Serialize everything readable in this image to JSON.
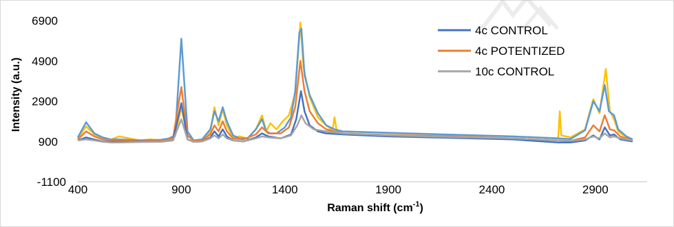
{
  "chart_data": {
    "type": "line",
    "title": "",
    "xlabel": "Raman shift (cm",
    "xlabel_sup": "-1",
    "xlabel_close": ")",
    "ylabel": "Intensity (a.u.)",
    "xlim": [
      400,
      3150
    ],
    "ylim": [
      -1100,
      6900
    ],
    "xticks": [
      400,
      900,
      1400,
      1900,
      2400,
      2900
    ],
    "yticks": [
      -1100,
      900,
      2900,
      4900,
      6900
    ],
    "grid": false,
    "legend_position": "top-right",
    "legend": [
      "4c CONTROL",
      "4c POTENTIZED",
      "10c CONTROL"
    ],
    "series": [
      {
        "name": "",
        "color": "#ffc000",
        "points": [
          [
            400,
            1050
          ],
          [
            440,
            1650
          ],
          [
            480,
            1250
          ],
          [
            520,
            1050
          ],
          [
            560,
            1000
          ],
          [
            600,
            1150
          ],
          [
            650,
            1050
          ],
          [
            700,
            950
          ],
          [
            750,
            1000
          ],
          [
            800,
            950
          ],
          [
            840,
            1000
          ],
          [
            870,
            1150
          ],
          [
            900,
            2600
          ],
          [
            930,
            1200
          ],
          [
            960,
            950
          ],
          [
            1000,
            1000
          ],
          [
            1040,
            1350
          ],
          [
            1060,
            2600
          ],
          [
            1080,
            1700
          ],
          [
            1100,
            2500
          ],
          [
            1120,
            1700
          ],
          [
            1150,
            1100
          ],
          [
            1180,
            1150
          ],
          [
            1220,
            1050
          ],
          [
            1260,
            1500
          ],
          [
            1290,
            2200
          ],
          [
            1310,
            1400
          ],
          [
            1330,
            1800
          ],
          [
            1360,
            1500
          ],
          [
            1390,
            1900
          ],
          [
            1420,
            2200
          ],
          [
            1450,
            3300
          ],
          [
            1475,
            6800
          ],
          [
            1490,
            4600
          ],
          [
            1520,
            3100
          ],
          [
            1560,
            2100
          ],
          [
            1600,
            1700
          ],
          [
            1630,
            1450
          ],
          [
            1640,
            2100
          ],
          [
            1650,
            1450
          ],
          [
            1680,
            1400
          ],
          [
            1900,
            1320
          ],
          [
            2200,
            1230
          ],
          [
            2500,
            1150
          ],
          [
            2720,
            1050
          ],
          [
            2728,
            2400
          ],
          [
            2735,
            1200
          ],
          [
            2780,
            1100
          ],
          [
            2850,
            1500
          ],
          [
            2890,
            3000
          ],
          [
            2920,
            2300
          ],
          [
            2950,
            4500
          ],
          [
            2970,
            2400
          ],
          [
            2990,
            2000
          ],
          [
            3010,
            1400
          ],
          [
            3050,
            1100
          ],
          [
            3080,
            900
          ]
        ]
      },
      {
        "name": "",
        "color": "#5b9bd5",
        "points": [
          [
            400,
            1100
          ],
          [
            440,
            1850
          ],
          [
            480,
            1300
          ],
          [
            520,
            1100
          ],
          [
            560,
            1000
          ],
          [
            600,
            1000
          ],
          [
            650,
            980
          ],
          [
            700,
            960
          ],
          [
            750,
            970
          ],
          [
            800,
            980
          ],
          [
            840,
            1050
          ],
          [
            870,
            1200
          ],
          [
            900,
            6000
          ],
          [
            930,
            1400
          ],
          [
            960,
            950
          ],
          [
            1000,
            1000
          ],
          [
            1040,
            1500
          ],
          [
            1060,
            2400
          ],
          [
            1080,
            1900
          ],
          [
            1100,
            2600
          ],
          [
            1120,
            1900
          ],
          [
            1150,
            1200
          ],
          [
            1180,
            1050
          ],
          [
            1220,
            1050
          ],
          [
            1260,
            1500
          ],
          [
            1290,
            2000
          ],
          [
            1310,
            1400
          ],
          [
            1330,
            1300
          ],
          [
            1360,
            1300
          ],
          [
            1400,
            1600
          ],
          [
            1430,
            2100
          ],
          [
            1450,
            3400
          ],
          [
            1470,
            6300
          ],
          [
            1480,
            6500
          ],
          [
            1495,
            4200
          ],
          [
            1520,
            3200
          ],
          [
            1560,
            2300
          ],
          [
            1600,
            1700
          ],
          [
            1640,
            1500
          ],
          [
            1680,
            1400
          ],
          [
            1900,
            1330
          ],
          [
            2200,
            1240
          ],
          [
            2500,
            1150
          ],
          [
            2720,
            1050
          ],
          [
            2780,
            1020
          ],
          [
            2850,
            1450
          ],
          [
            2890,
            2900
          ],
          [
            2920,
            2400
          ],
          [
            2945,
            3700
          ],
          [
            2965,
            2400
          ],
          [
            2990,
            2200
          ],
          [
            3010,
            1500
          ],
          [
            3050,
            1150
          ],
          [
            3080,
            1000
          ]
        ]
      },
      {
        "name": "",
        "color": "#ed7d31",
        "points": [
          [
            400,
            1000
          ],
          [
            440,
            1400
          ],
          [
            480,
            1150
          ],
          [
            520,
            1000
          ],
          [
            600,
            950
          ],
          [
            700,
            920
          ],
          [
            800,
            930
          ],
          [
            860,
            1050
          ],
          [
            900,
            3600
          ],
          [
            930,
            1200
          ],
          [
            960,
            930
          ],
          [
            1000,
            950
          ],
          [
            1040,
            1250
          ],
          [
            1060,
            1700
          ],
          [
            1080,
            1400
          ],
          [
            1100,
            1900
          ],
          [
            1120,
            1400
          ],
          [
            1150,
            1050
          ],
          [
            1200,
            1000
          ],
          [
            1260,
            1250
          ],
          [
            1290,
            1600
          ],
          [
            1320,
            1300
          ],
          [
            1380,
            1300
          ],
          [
            1420,
            1600
          ],
          [
            1450,
            2600
          ],
          [
            1475,
            4900
          ],
          [
            1495,
            3400
          ],
          [
            1520,
            2400
          ],
          [
            1560,
            1800
          ],
          [
            1600,
            1500
          ],
          [
            1680,
            1300
          ],
          [
            1900,
            1220
          ],
          [
            2200,
            1150
          ],
          [
            2500,
            1050
          ],
          [
            2720,
            950
          ],
          [
            2780,
            930
          ],
          [
            2850,
            1100
          ],
          [
            2890,
            1700
          ],
          [
            2920,
            1400
          ],
          [
            2945,
            2200
          ],
          [
            2970,
            1500
          ],
          [
            2990,
            1450
          ],
          [
            3020,
            1150
          ],
          [
            3080,
            950
          ]
        ]
      },
      {
        "name": "4c CONTROL",
        "color": "#4472c4",
        "points": [
          [
            400,
            950
          ],
          [
            440,
            1100
          ],
          [
            480,
            1000
          ],
          [
            520,
            900
          ],
          [
            600,
            880
          ],
          [
            700,
            880
          ],
          [
            800,
            880
          ],
          [
            860,
            950
          ],
          [
            900,
            2800
          ],
          [
            930,
            1000
          ],
          [
            960,
            880
          ],
          [
            1000,
            900
          ],
          [
            1040,
            1100
          ],
          [
            1060,
            1400
          ],
          [
            1080,
            1150
          ],
          [
            1100,
            1500
          ],
          [
            1120,
            1150
          ],
          [
            1150,
            950
          ],
          [
            1200,
            900
          ],
          [
            1260,
            1100
          ],
          [
            1290,
            1300
          ],
          [
            1320,
            1150
          ],
          [
            1380,
            1050
          ],
          [
            1430,
            1250
          ],
          [
            1455,
            2000
          ],
          [
            1478,
            3400
          ],
          [
            1495,
            2400
          ],
          [
            1520,
            1700
          ],
          [
            1560,
            1400
          ],
          [
            1600,
            1300
          ],
          [
            1680,
            1250
          ],
          [
            1900,
            1150
          ],
          [
            2200,
            1080
          ],
          [
            2500,
            1000
          ],
          [
            2720,
            850
          ],
          [
            2780,
            850
          ],
          [
            2850,
            950
          ],
          [
            2890,
            1200
          ],
          [
            2920,
            1000
          ],
          [
            2945,
            1600
          ],
          [
            2970,
            1200
          ],
          [
            2990,
            1250
          ],
          [
            3020,
            1000
          ],
          [
            3080,
            900
          ]
        ]
      },
      {
        "name": "4c POTENTIZED",
        "color": "#ed7d31",
        "points": []
      },
      {
        "name": "10c CONTROL",
        "color": "#a5a5a5",
        "points": [
          [
            400,
            950
          ],
          [
            440,
            1000
          ],
          [
            480,
            950
          ],
          [
            520,
            880
          ],
          [
            560,
            850
          ],
          [
            600,
            850
          ],
          [
            700,
            870
          ],
          [
            800,
            880
          ],
          [
            860,
            950
          ],
          [
            900,
            2000
          ],
          [
            930,
            1000
          ],
          [
            960,
            880
          ],
          [
            1000,
            900
          ],
          [
            1040,
            1050
          ],
          [
            1060,
            1200
          ],
          [
            1080,
            1050
          ],
          [
            1100,
            1250
          ],
          [
            1120,
            1050
          ],
          [
            1150,
            950
          ],
          [
            1200,
            900
          ],
          [
            1260,
            1050
          ],
          [
            1290,
            1150
          ],
          [
            1320,
            1100
          ],
          [
            1380,
            1050
          ],
          [
            1430,
            1200
          ],
          [
            1460,
            1700
          ],
          [
            1480,
            2200
          ],
          [
            1500,
            1800
          ],
          [
            1540,
            1500
          ],
          [
            1600,
            1400
          ],
          [
            1680,
            1300
          ],
          [
            1900,
            1200
          ],
          [
            2200,
            1120
          ],
          [
            2500,
            1050
          ],
          [
            2720,
            950
          ],
          [
            2780,
            930
          ],
          [
            2850,
            1000
          ],
          [
            2890,
            1150
          ],
          [
            2920,
            1050
          ],
          [
            2945,
            1300
          ],
          [
            2970,
            1100
          ],
          [
            2990,
            1150
          ],
          [
            3020,
            1050
          ],
          [
            3080,
            950
          ]
        ]
      }
    ]
  }
}
